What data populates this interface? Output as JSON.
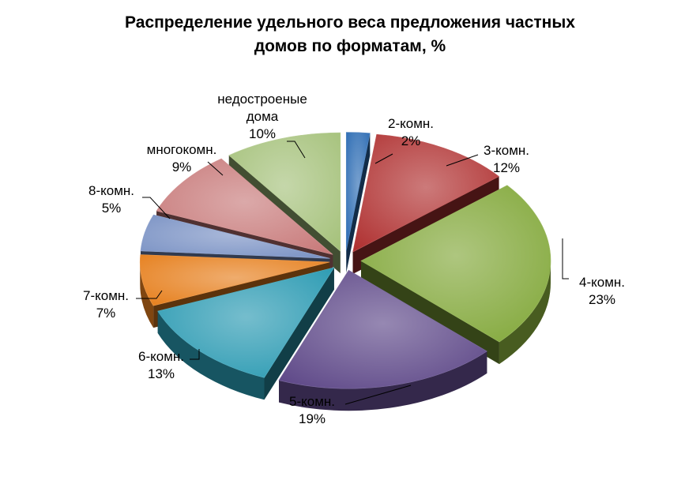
{
  "chart_data": {
    "type": "pie",
    "title_lines": [
      "Распределение удельного веса предложения частных",
      "домов по форматам, %"
    ],
    "unit": "%",
    "exploded": true,
    "style": "3d",
    "slices": [
      {
        "label_lines": [
          "2-комн."
        ],
        "value": 2,
        "value_text": "2%",
        "color": "#2E6DB4"
      },
      {
        "label_lines": [
          "3-комн."
        ],
        "value": 12,
        "value_text": "12%",
        "color": "#B03232"
      },
      {
        "label_lines": [
          "4-комн."
        ],
        "value": 23,
        "value_text": "23%",
        "color": "#82A83A"
      },
      {
        "label_lines": [
          "5-комн."
        ],
        "value": 19,
        "value_text": "19%",
        "color": "#5E4888"
      },
      {
        "label_lines": [
          "6-комн."
        ],
        "value": 13,
        "value_text": "13%",
        "color": "#2A9AB2"
      },
      {
        "label_lines": [
          "7-комн."
        ],
        "value": 7,
        "value_text": "7%",
        "color": "#E6801E"
      },
      {
        "label_lines": [
          "8-комн."
        ],
        "value": 5,
        "value_text": "5%",
        "color": "#7A92C4"
      },
      {
        "label_lines": [
          "многокомн."
        ],
        "value": 9,
        "value_text": "9%",
        "color": "#C87A7A"
      },
      {
        "label_lines": [
          "недостроеные",
          "дома"
        ],
        "value": 10,
        "value_text": "10%",
        "color": "#A6C27C"
      }
    ]
  }
}
